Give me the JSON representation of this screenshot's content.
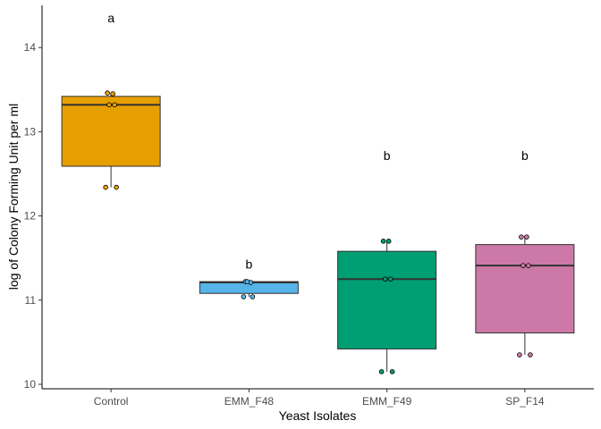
{
  "chart_data": {
    "type": "box",
    "xlabel": "Yeast Isolates",
    "ylabel": "log of Colony Forming Unit per ml",
    "ylim": [
      9.95,
      14.5
    ],
    "yticks": [
      10,
      11,
      12,
      13,
      14
    ],
    "ytick_labels": [
      "10",
      "11",
      "12",
      "13",
      "14"
    ],
    "grid": false,
    "legend": "none",
    "categories": [
      "Control",
      "EMM_F48",
      "EMM_F49",
      "SP_F14"
    ],
    "boxes": [
      {
        "category": "Control",
        "color": "#E69F00",
        "min": 12.34,
        "q1": 12.59,
        "median": 13.32,
        "q3": 13.42,
        "max": 13.46,
        "points": [
          13.46,
          13.45,
          13.32,
          13.32,
          12.34,
          12.34
        ],
        "letter": "a"
      },
      {
        "category": "EMM_F48",
        "color": "#56B4E9",
        "min": 11.04,
        "q1": 11.08,
        "median": 11.21,
        "q3": 11.22,
        "max": 11.22,
        "points": [
          11.22,
          11.21,
          11.22,
          11.04,
          11.04
        ],
        "letter": "b"
      },
      {
        "category": "EMM_F49",
        "color": "#009E73",
        "min": 10.15,
        "q1": 10.42,
        "median": 11.25,
        "q3": 11.58,
        "max": 11.7,
        "points": [
          11.7,
          11.7,
          11.25,
          11.25,
          10.15,
          10.15
        ],
        "letter": "b"
      },
      {
        "category": "SP_F14",
        "color": "#CC79A7",
        "min": 10.35,
        "q1": 10.61,
        "median": 11.41,
        "q3": 11.66,
        "max": 11.75,
        "points": [
          11.75,
          11.75,
          11.41,
          11.41,
          10.35,
          10.35
        ],
        "letter": "b"
      }
    ],
    "letter_y": {
      "Control": 14.35,
      "EMM_F48": 11.43,
      "EMM_F49": 12.72,
      "SP_F14": 12.72
    }
  }
}
